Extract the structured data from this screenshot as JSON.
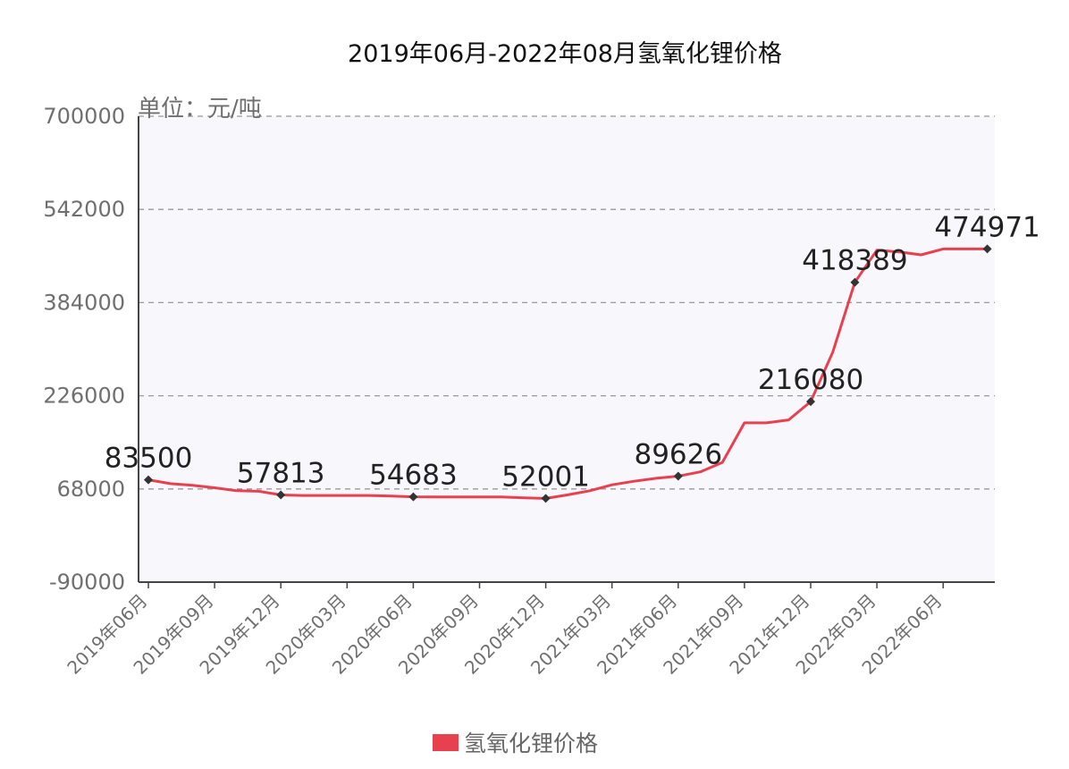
{
  "chart_data": {
    "type": "line",
    "title": "2019年06月-2022年08月氢氧化锂价格",
    "unit_label": "单位：元/吨",
    "colors": {
      "line": "#e8404f",
      "plot_background": "#f8f8fc",
      "grid": "#999999",
      "marker": "#333333"
    },
    "grid": true,
    "legend_position": "bottom-center",
    "ylim": [
      -90000,
      700000
    ],
    "y_ticks": [
      "-90000",
      "68000",
      "226000",
      "384000",
      "542000",
      "700000"
    ],
    "x_tick_labels": [
      "2019年06月",
      "2019年09月",
      "2019年12月",
      "2020年03月",
      "2020年06月",
      "2020年09月",
      "2020年12月",
      "2021年03月",
      "2021年06月",
      "2021年09月",
      "2021年12月",
      "2022年03月",
      "2022年06月"
    ],
    "series": [
      {
        "name": "氢氧化锂价格",
        "x": [
          "2019-06",
          "2019-07",
          "2019-08",
          "2019-09",
          "2019-10",
          "2019-11",
          "2019-12",
          "2020-01",
          "2020-02",
          "2020-03",
          "2020-04",
          "2020-05",
          "2020-06",
          "2020-07",
          "2020-08",
          "2020-09",
          "2020-10",
          "2020-11",
          "2020-12",
          "2021-01",
          "2021-02",
          "2021-03",
          "2021-04",
          "2021-05",
          "2021-06",
          "2021-07",
          "2021-08",
          "2021-09",
          "2021-10",
          "2021-11",
          "2021-12",
          "2022-01",
          "2022-02",
          "2022-03",
          "2022-04",
          "2022-05",
          "2022-06",
          "2022-07",
          "2022-08"
        ],
        "values": [
          83500,
          77000,
          74000,
          70000,
          65000,
          64000,
          57813,
          57000,
          57000,
          57000,
          57000,
          56000,
          54683,
          54500,
          54500,
          54500,
          54500,
          53000,
          52001,
          58000,
          65000,
          75000,
          81000,
          86000,
          89626,
          97000,
          113000,
          180000,
          180000,
          185000,
          216080,
          300000,
          418389,
          473000,
          470000,
          465000,
          475000,
          475000,
          474971
        ],
        "data_labels": [
          {
            "index": 0,
            "text": "83500"
          },
          {
            "index": 6,
            "text": "57813"
          },
          {
            "index": 12,
            "text": "54683"
          },
          {
            "index": 18,
            "text": "52001"
          },
          {
            "index": 24,
            "text": "89626"
          },
          {
            "index": 30,
            "text": "216080"
          },
          {
            "index": 32,
            "text": "418389"
          },
          {
            "index": 38,
            "text": "474971"
          }
        ]
      }
    ]
  }
}
